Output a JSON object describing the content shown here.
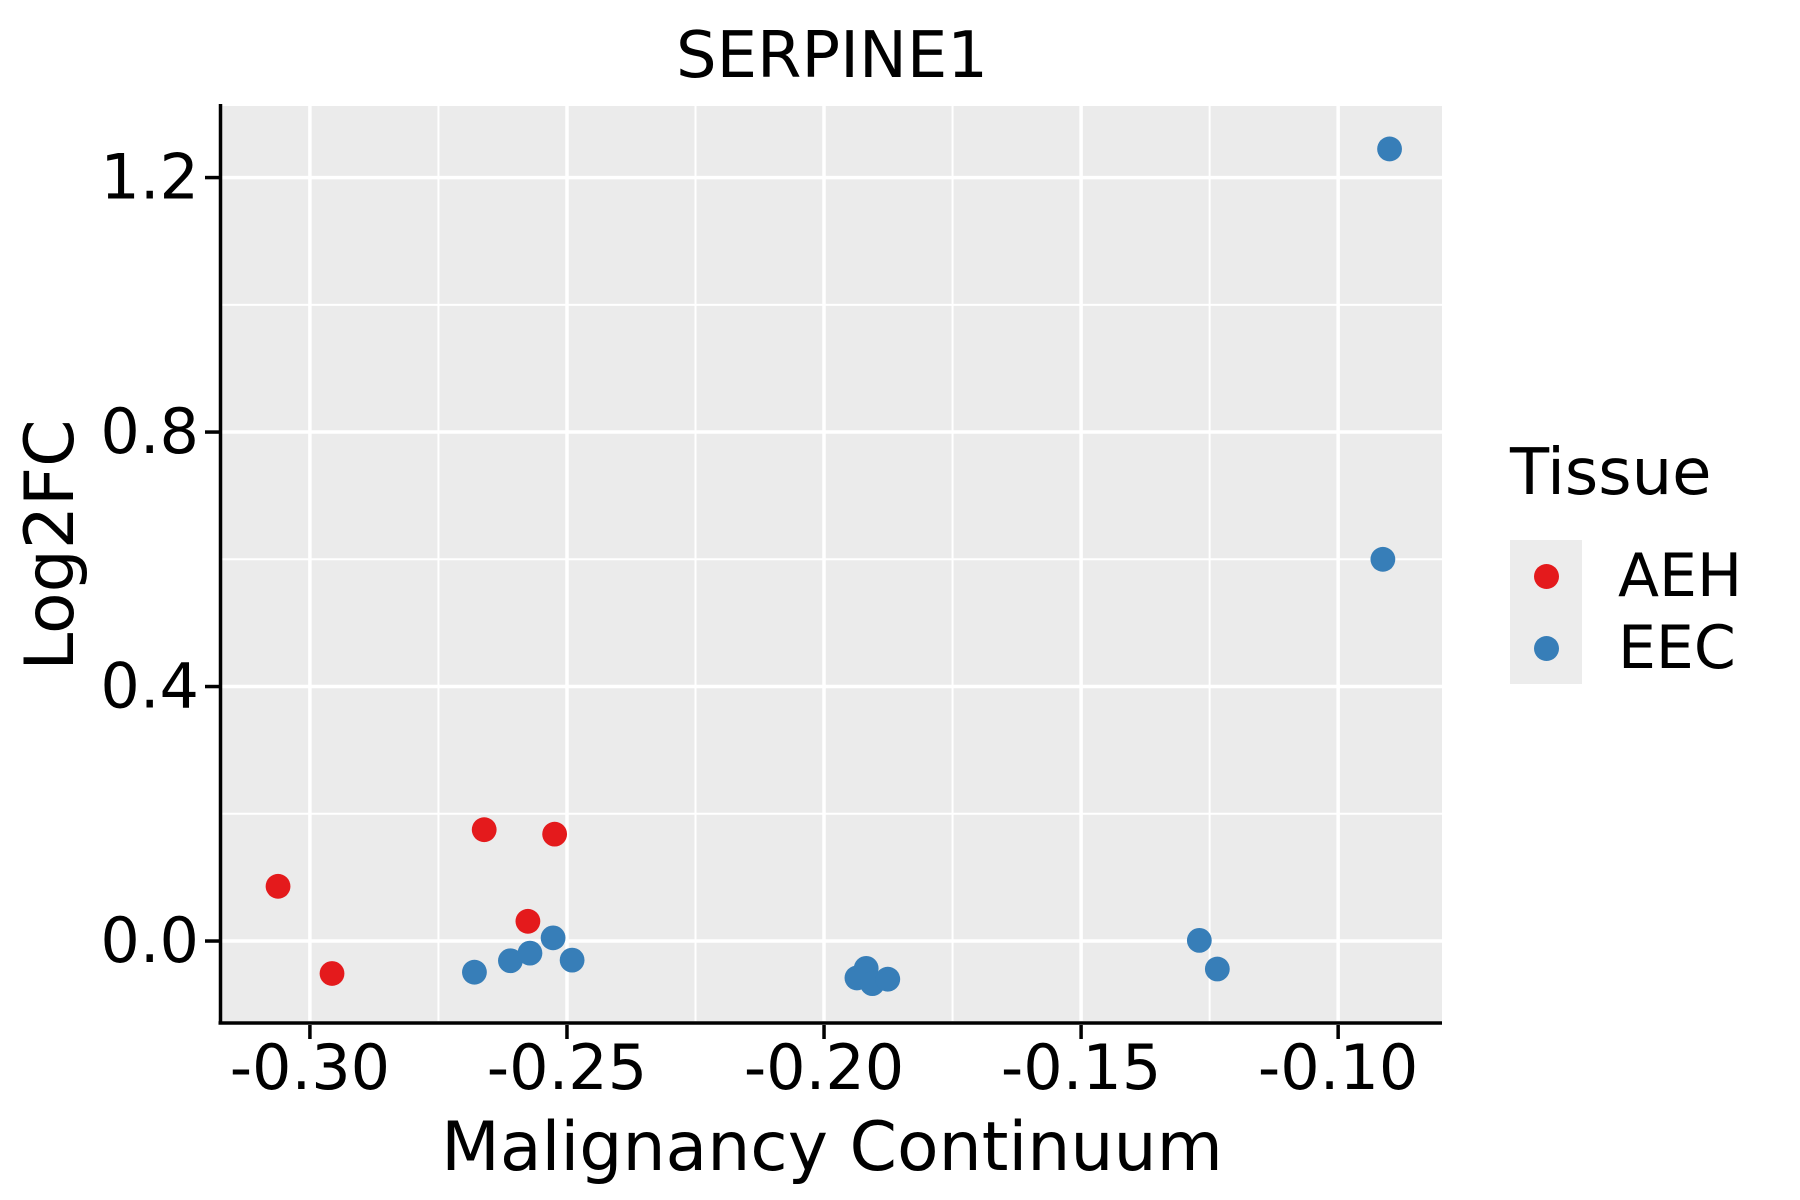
{
  "title": "SERPINE1",
  "legend": {
    "title": "Tissue",
    "items": [
      {
        "label": "AEH",
        "color": "#E41A1C"
      },
      {
        "label": "EEC",
        "color": "#377EB8"
      }
    ]
  },
  "colors": {
    "panel_background": "#EBEBEB",
    "gridline": "#FFFFFF",
    "axis_line": "#000000",
    "text": "#000000",
    "legend_key_background": "#ECECEC",
    "aeh": "#E41A1C",
    "eec": "#377EB8"
  },
  "chart_data": {
    "type": "scatter",
    "title": "SERPINE1",
    "xlabel": "Malignancy Continuum",
    "ylabel": "Log2FC",
    "xlim": [
      -0.3171,
      -0.0798
    ],
    "ylim": [
      -0.1257,
      1.3125
    ],
    "grid": true,
    "legend_position": "right",
    "x_ticks": {
      "values": [
        -0.3,
        -0.25,
        -0.2,
        -0.15,
        -0.1
      ],
      "labels": [
        "-0.30",
        "-0.25",
        "-0.20",
        "-0.15",
        "-0.10"
      ]
    },
    "y_ticks": {
      "values": [
        0.0,
        0.4,
        0.8,
        1.2
      ],
      "labels": [
        "0.0",
        "0.4",
        "0.8",
        "1.2"
      ]
    },
    "x_minor_ticks": [
      -0.275,
      -0.225,
      -0.175,
      -0.125
    ],
    "y_minor_ticks": [
      0.2,
      0.6,
      1.0
    ],
    "series": [
      {
        "name": "AEH",
        "color": "#E41A1C",
        "points": [
          [
            -0.3062,
            0.086
          ],
          [
            -0.2957,
            -0.051
          ],
          [
            -0.2661,
            0.175
          ],
          [
            -0.2576,
            0.031
          ],
          [
            -0.2524,
            0.168
          ]
        ]
      },
      {
        "name": "EEC",
        "color": "#377EB8",
        "points": [
          [
            -0.268,
            -0.049
          ],
          [
            -0.261,
            -0.031
          ],
          [
            -0.2572,
            -0.019
          ],
          [
            -0.2527,
            0.005
          ],
          [
            -0.249,
            -0.03
          ],
          [
            -0.1936,
            -0.058
          ],
          [
            -0.1918,
            -0.043
          ],
          [
            -0.1906,
            -0.067
          ],
          [
            -0.1876,
            -0.06
          ],
          [
            -0.127,
            0.001
          ],
          [
            -0.1235,
            -0.044
          ],
          [
            -0.0913,
            0.6
          ],
          [
            -0.09,
            1.245
          ]
        ]
      }
    ]
  }
}
